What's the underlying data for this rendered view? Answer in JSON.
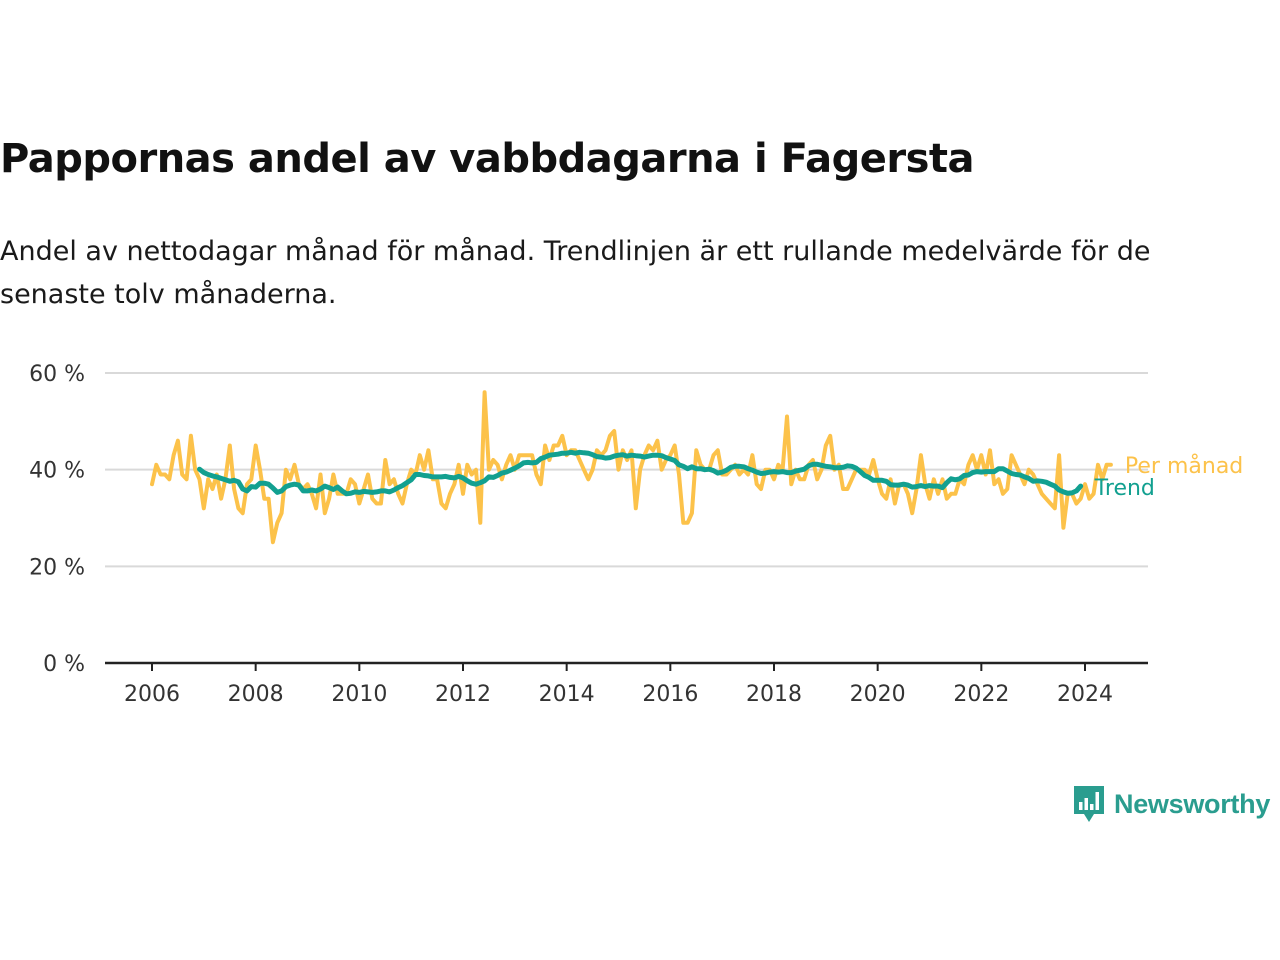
{
  "title": "Pappornas andel av vabbdagarna i Fagersta",
  "subtitle": "Andel av nettodagar månad för månad. Trendlinjen är ett rullande medelvärde för de senaste tolv månaderna.",
  "brand": {
    "name": "Newsworthy",
    "icon": "newsworthy-logo-icon",
    "color": "#2a9d8f"
  },
  "colors": {
    "monthly": "#fcc24a",
    "trend": "#12a090",
    "grid": "#d9d9d9",
    "axis": "#222222"
  },
  "chart_data": {
    "type": "line",
    "title": "Pappornas andel av vabbdagarna i Fagersta",
    "xlabel": "",
    "ylabel": "",
    "xlim": [
      2005.5,
      2025.5
    ],
    "ylim": [
      0,
      60
    ],
    "grid": true,
    "x_ticks": [
      {
        "value": 2006,
        "label": "2006"
      },
      {
        "value": 2008,
        "label": "2008"
      },
      {
        "value": 2010,
        "label": "2010"
      },
      {
        "value": 2012,
        "label": "2012"
      },
      {
        "value": 2014,
        "label": "2014"
      },
      {
        "value": 2016,
        "label": "2016"
      },
      {
        "value": 2018,
        "label": "2018"
      },
      {
        "value": 2020,
        "label": "2020"
      },
      {
        "value": 2022,
        "label": "2022"
      },
      {
        "value": 2024,
        "label": "2024"
      }
    ],
    "y_ticks": [
      {
        "value": 0,
        "label": "0 %"
      },
      {
        "value": 20,
        "label": "20 %"
      },
      {
        "value": 40,
        "label": "40 %"
      },
      {
        "value": 60,
        "label": "60 %"
      }
    ],
    "series": [
      {
        "name": "Per månad",
        "color": "#fcc24a",
        "start": "2006-01",
        "values": [
          37,
          41,
          39,
          39,
          38,
          43,
          46,
          39,
          38,
          47,
          40,
          38,
          32,
          38,
          36,
          39,
          34,
          38,
          45,
          36,
          32,
          31,
          37,
          38,
          45,
          40,
          34,
          34,
          25,
          29,
          31,
          40,
          38,
          41,
          37,
          36,
          37,
          35,
          32,
          39,
          31,
          34,
          39,
          35,
          35,
          35,
          38,
          37,
          33,
          36,
          39,
          34,
          33,
          33,
          42,
          37,
          38,
          35,
          33,
          37,
          40,
          39,
          43,
          40,
          44,
          38,
          38,
          33,
          32,
          35,
          37,
          41,
          35,
          41,
          39,
          40,
          29,
          56,
          40,
          42,
          41,
          38,
          41,
          43,
          40,
          43,
          43,
          43,
          43,
          39,
          37,
          45,
          42,
          45,
          45,
          47,
          43,
          44,
          44,
          42,
          40,
          38,
          40,
          44,
          43,
          44,
          47,
          48,
          40,
          44,
          42,
          44,
          32,
          40,
          43,
          45,
          44,
          46,
          40,
          42,
          43,
          45,
          39,
          29,
          29,
          31,
          44,
          41,
          40,
          40,
          43,
          44,
          39,
          39,
          40,
          41,
          39,
          40,
          39,
          43,
          37,
          36,
          40,
          40,
          38,
          41,
          40,
          51,
          37,
          40,
          38,
          38,
          41,
          42,
          38,
          40,
          45,
          47,
          40,
          41,
          36,
          36,
          38,
          40,
          40,
          40,
          39,
          42,
          38,
          35,
          34,
          38,
          33,
          37,
          37,
          35,
          31,
          36,
          43,
          37,
          34,
          38,
          35,
          38,
          34,
          35,
          35,
          38,
          37,
          41,
          43,
          40,
          43,
          39,
          44,
          37,
          38,
          35,
          36,
          43,
          41,
          39,
          37,
          40,
          39,
          37,
          35,
          34,
          33,
          32,
          43,
          28,
          35,
          35,
          33,
          34,
          37,
          34,
          35,
          41,
          38,
          41,
          41
        ]
      },
      {
        "name": "Trend",
        "color": "#12a090",
        "start": "2006-12",
        "values": [
          40.1,
          39.4,
          39,
          38.7,
          38.5,
          38.2,
          37.9,
          37.6,
          37.8,
          37.5,
          36,
          35.6,
          36.5,
          36.4,
          37.2,
          37.2,
          37,
          36.2,
          35.3,
          35.6,
          36.5,
          36.8,
          37,
          36.8,
          35.6,
          35.6,
          35.8,
          35.6,
          36,
          36.6,
          36.3,
          35.9,
          36.4,
          35.6,
          35,
          35.1,
          35.4,
          35.3,
          35.5,
          35.4,
          35.3,
          35.4,
          35.6,
          35.6,
          35.4,
          35.8,
          36.3,
          36.7,
          37.3,
          37.9,
          39,
          39,
          38.8,
          38.7,
          38.5,
          38.5,
          38.5,
          38.6,
          38.4,
          38.3,
          38.6,
          38.3,
          37.7,
          37.2,
          37,
          37.3,
          37.7,
          38.5,
          38.4,
          38.8,
          39.3,
          39.5,
          39.9,
          40.3,
          40.8,
          41.4,
          41.5,
          41.4,
          41.5,
          42.3,
          42.6,
          43,
          43.1,
          43.2,
          43.4,
          43.4,
          43.6,
          43.4,
          43.6,
          43.5,
          43.4,
          43.1,
          42.7,
          42.6,
          42.4,
          42.5,
          42.8,
          43,
          43.1,
          42.8,
          43,
          42.9,
          42.8,
          42.6,
          42.8,
          43,
          43,
          42.9,
          42.5,
          42.2,
          41.9,
          41,
          40.7,
          40.2,
          40.6,
          40.2,
          40.2,
          40,
          40.1,
          39.8,
          39.3,
          39.5,
          39.9,
          40.5,
          40.7,
          40.7,
          40.6,
          40.2,
          39.9,
          39.5,
          39.2,
          39.3,
          39.5,
          39.6,
          39.5,
          39.6,
          39.4,
          39.4,
          39.7,
          39.9,
          40.1,
          40.8,
          41.1,
          41.1,
          40.9,
          40.7,
          40.6,
          40.4,
          40.4,
          40.5,
          40.8,
          40.7,
          40.3,
          39.6,
          38.8,
          38.4,
          37.8,
          37.8,
          37.8,
          37.6,
          36.9,
          36.8,
          36.8,
          37,
          36.8,
          36.4,
          36.5,
          36.7,
          36.5,
          36.7,
          36.6,
          36.6,
          36.3,
          37.3,
          38.1,
          37.9,
          38.1,
          38.8,
          38.9,
          39.4,
          39.6,
          39.5,
          39.6,
          39.6,
          39.6,
          40.2,
          40.2,
          39.7,
          39.2,
          39,
          38.9,
          38.5,
          38.2,
          37.6,
          37.7,
          37.6,
          37.4,
          37,
          36.6,
          35.8,
          35.4,
          35.1,
          35.2,
          35.6,
          36.6
        ]
      }
    ],
    "legend": [
      "Per månad",
      "Trend"
    ],
    "legend_position": "right, at line ends"
  }
}
